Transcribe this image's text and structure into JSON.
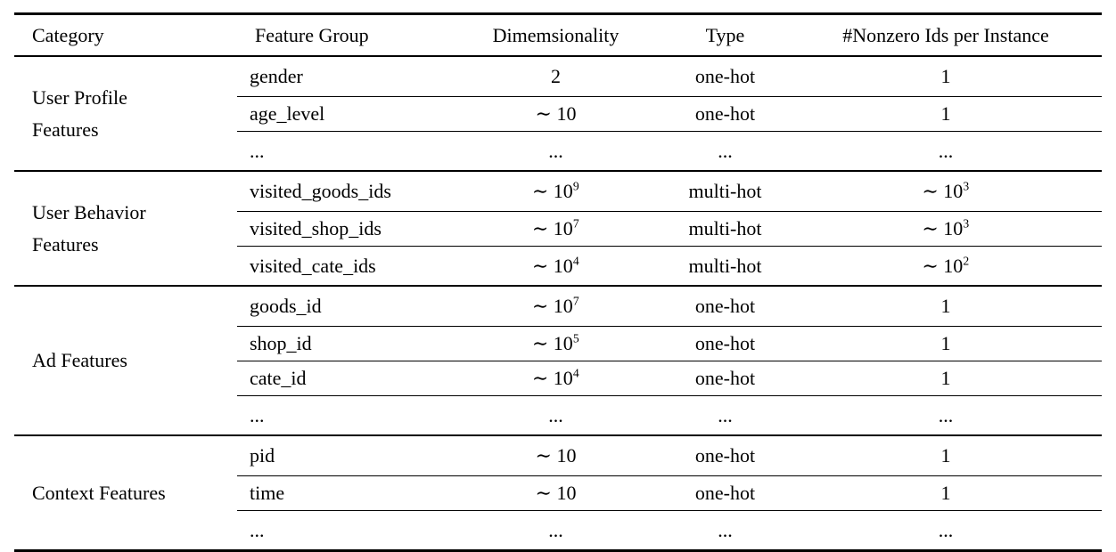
{
  "table": {
    "columns": {
      "category": "Category",
      "feature_group": "Feature Group",
      "dimensionality": "Dimemsionality",
      "type": "Type",
      "nonzero": "#Nonzero Ids per Instance"
    },
    "groups": [
      {
        "category": "User Profile Features",
        "rows": [
          {
            "feature": "gender",
            "dim": "2",
            "dim_exp": "",
            "type": "one-hot",
            "nonzero": "1",
            "nonzero_exp": ""
          },
          {
            "feature": "age_level",
            "dim": "∼ 10",
            "dim_exp": "",
            "type": "one-hot",
            "nonzero": "1",
            "nonzero_exp": ""
          },
          {
            "feature": "...",
            "dim": "...",
            "dim_exp": "",
            "type": "...",
            "nonzero": "...",
            "nonzero_exp": ""
          }
        ]
      },
      {
        "category": "User Behavior Features",
        "rows": [
          {
            "feature": "visited_goods_ids",
            "dim": "∼ 10",
            "dim_exp": "9",
            "type": "multi-hot",
            "nonzero": "∼ 10",
            "nonzero_exp": "3"
          },
          {
            "feature": "visited_shop_ids",
            "dim": "∼ 10",
            "dim_exp": "7",
            "type": "multi-hot",
            "nonzero": "∼ 10",
            "nonzero_exp": "3"
          },
          {
            "feature": "visited_cate_ids",
            "dim": "∼ 10",
            "dim_exp": "4",
            "type": "multi-hot",
            "nonzero": "∼ 10",
            "nonzero_exp": "2"
          }
        ]
      },
      {
        "category": "Ad Features",
        "rows": [
          {
            "feature": "goods_id",
            "dim": "∼ 10",
            "dim_exp": "7",
            "type": "one-hot",
            "nonzero": "1",
            "nonzero_exp": ""
          },
          {
            "feature": "shop_id",
            "dim": "∼ 10",
            "dim_exp": "5",
            "type": "one-hot",
            "nonzero": "1",
            "nonzero_exp": ""
          },
          {
            "feature": "cate_id",
            "dim": "∼ 10",
            "dim_exp": "4",
            "type": "one-hot",
            "nonzero": "1",
            "nonzero_exp": ""
          },
          {
            "feature": "...",
            "dim": "...",
            "dim_exp": "",
            "type": "...",
            "nonzero": "...",
            "nonzero_exp": ""
          }
        ]
      },
      {
        "category": "Context Features",
        "rows": [
          {
            "feature": "pid",
            "dim": "∼ 10",
            "dim_exp": "",
            "type": "one-hot",
            "nonzero": "1",
            "nonzero_exp": ""
          },
          {
            "feature": "time",
            "dim": "∼ 10",
            "dim_exp": "",
            "type": "one-hot",
            "nonzero": "1",
            "nonzero_exp": ""
          },
          {
            "feature": "...",
            "dim": "...",
            "dim_exp": "",
            "type": "...",
            "nonzero": "...",
            "nonzero_exp": ""
          }
        ]
      }
    ]
  }
}
